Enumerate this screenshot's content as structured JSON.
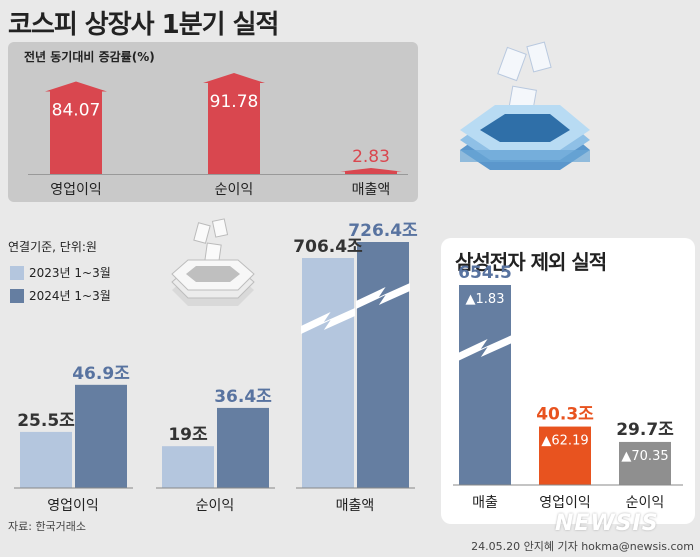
{
  "title": "코스피 상장사 1분기 실적",
  "growth": {
    "label": "전년 동기대비 증감률(%)",
    "color": "#d9474f",
    "bars": [
      {
        "name": "영업이익",
        "value": 84.07,
        "text": "84.07"
      },
      {
        "name": "순이익",
        "value": 91.78,
        "text": "91.78"
      },
      {
        "name": "매출액",
        "value": 2.83,
        "text": "2.83"
      }
    ]
  },
  "main_chart": {
    "unit_label": "연결기준, 단위:원",
    "legend": [
      {
        "label": "2023년 1~3월",
        "color": "#b4c6de"
      },
      {
        "label": "2024년 1~3월",
        "color": "#657ea1"
      }
    ],
    "groups": [
      {
        "category": "영업이익",
        "v2023": 25.5,
        "v2023_text": "25.5조",
        "v2024": 46.9,
        "v2024_text": "46.9조"
      },
      {
        "category": "순이익",
        "v2023": 19,
        "v2023_text": "19조",
        "v2024": 36.4,
        "v2024_text": "36.4조"
      },
      {
        "category": "매출액",
        "v2023": 706.4,
        "v2023_text": "706.4조",
        "v2024": 726.4,
        "v2024_text": "726.4조"
      }
    ]
  },
  "samsung": {
    "title": "삼성전자 제외 실적",
    "bars": [
      {
        "category": "매출",
        "value": 654.5,
        "text": "654.5",
        "change": "▲1.83",
        "color": "#657ea1"
      },
      {
        "category": "영업이익",
        "value": 40.3,
        "text": "40.3조",
        "change": "▲62.19",
        "color": "#e8531f"
      },
      {
        "category": "순이익",
        "value": 29.7,
        "text": "29.7조",
        "change": "▲70.35",
        "color": "#8f8f8f"
      }
    ]
  },
  "chart_data": [
    {
      "type": "bar",
      "title": "전년 동기대비 증감률(%)",
      "categories": [
        "영업이익",
        "순이익",
        "매출액"
      ],
      "values": [
        84.07,
        91.78,
        2.83
      ]
    },
    {
      "type": "bar",
      "title": "",
      "ylabel": "연결기준, 단위:원",
      "categories": [
        "영업이익",
        "순이익",
        "매출액"
      ],
      "series": [
        {
          "name": "2023년 1~3월",
          "values": [
            25.5,
            19,
            706.4
          ]
        },
        {
          "name": "2024년 1~3월",
          "values": [
            46.9,
            36.4,
            726.4
          ]
        }
      ]
    },
    {
      "type": "bar",
      "title": "삼성전자 제외 실적",
      "categories": [
        "매출",
        "영업이익",
        "순이익"
      ],
      "values": [
        654.5,
        40.3,
        29.7
      ],
      "annotations": [
        "▲1.83",
        "▲62.19",
        "▲70.35"
      ]
    }
  ],
  "source": "자료: 한국거래소",
  "byline": "24.05.20 안지혜 기자 hokma@newsis.com",
  "watermark": "NEWSIS"
}
